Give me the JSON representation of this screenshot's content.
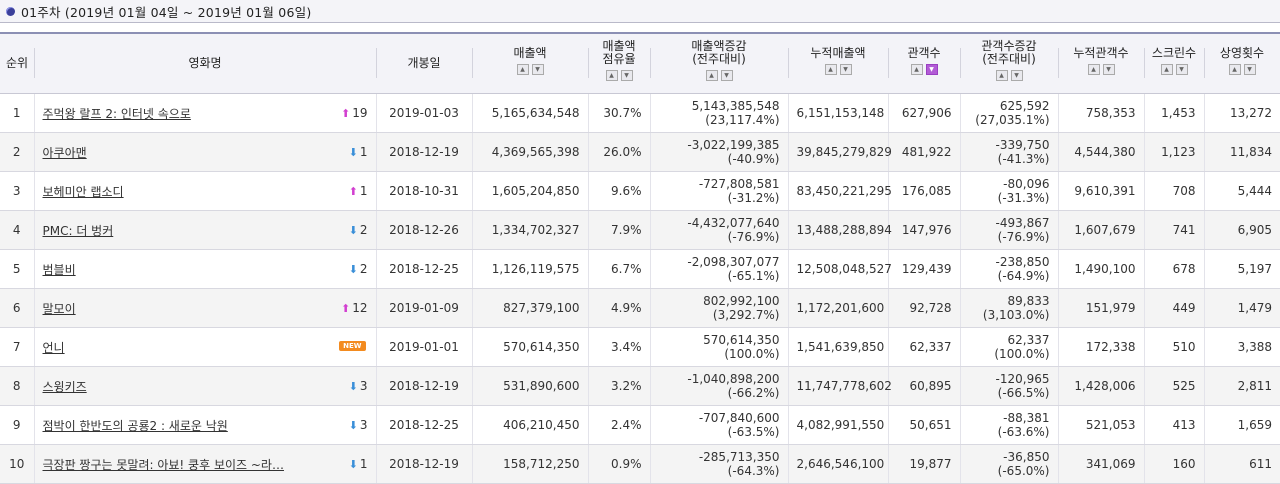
{
  "title": "01주차 (2019년 01월 04일 ~ 2019년 01월 06일)",
  "headers": {
    "rank": "순위",
    "movie": "영화명",
    "release": "개봉일",
    "sales": "매출액",
    "share_1": "매출액",
    "share_2": "점유율",
    "salesdiff_1": "매출액증감",
    "salesdiff_2": "(전주대비)",
    "cumsales": "누적매출액",
    "audience": "관객수",
    "auddiff_1": "관객수증감",
    "auddiff_2": "(전주대비)",
    "cumaud": "누적관객수",
    "screens": "스크린수",
    "shows": "상영횟수"
  },
  "new_badge": "NEW",
  "rows": [
    {
      "rank": "1",
      "movie": "주먹왕 랄프 2: 인터넷 속으로",
      "dir": "up",
      "change": "19",
      "release": "2019-01-03",
      "sales": "5,165,634,548",
      "share": "30.7%",
      "salesdiff": "5,143,385,548",
      "salesdiff_pct": "(23,117.4%)",
      "cumsales": "6,151,153,148",
      "audience": "627,906",
      "auddiff": "625,592",
      "auddiff_pct": "(27,035.1%)",
      "cumaud": "758,353",
      "screens": "1,453",
      "shows": "13,272"
    },
    {
      "rank": "2",
      "movie": "아쿠아맨",
      "dir": "down",
      "change": "1",
      "release": "2018-12-19",
      "sales": "4,369,565,398",
      "share": "26.0%",
      "salesdiff": "-3,022,199,385",
      "salesdiff_pct": "(-40.9%)",
      "cumsales": "39,845,279,829",
      "audience": "481,922",
      "auddiff": "-339,750",
      "auddiff_pct": "(-41.3%)",
      "cumaud": "4,544,380",
      "screens": "1,123",
      "shows": "11,834"
    },
    {
      "rank": "3",
      "movie": "보헤미안 랩소디",
      "dir": "up",
      "change": "1",
      "release": "2018-10-31",
      "sales": "1,605,204,850",
      "share": "9.6%",
      "salesdiff": "-727,808,581",
      "salesdiff_pct": "(-31.2%)",
      "cumsales": "83,450,221,295",
      "audience": "176,085",
      "auddiff": "-80,096",
      "auddiff_pct": "(-31.3%)",
      "cumaud": "9,610,391",
      "screens": "708",
      "shows": "5,444"
    },
    {
      "rank": "4",
      "movie": "PMC: 더 벙커",
      "dir": "down",
      "change": "2",
      "release": "2018-12-26",
      "sales": "1,334,702,327",
      "share": "7.9%",
      "salesdiff": "-4,432,077,640",
      "salesdiff_pct": "(-76.9%)",
      "cumsales": "13,488,288,894",
      "audience": "147,976",
      "auddiff": "-493,867",
      "auddiff_pct": "(-76.9%)",
      "cumaud": "1,607,679",
      "screens": "741",
      "shows": "6,905"
    },
    {
      "rank": "5",
      "movie": "범블비",
      "dir": "down",
      "change": "2",
      "release": "2018-12-25",
      "sales": "1,126,119,575",
      "share": "6.7%",
      "salesdiff": "-2,098,307,077",
      "salesdiff_pct": "(-65.1%)",
      "cumsales": "12,508,048,527",
      "audience": "129,439",
      "auddiff": "-238,850",
      "auddiff_pct": "(-64.9%)",
      "cumaud": "1,490,100",
      "screens": "678",
      "shows": "5,197"
    },
    {
      "rank": "6",
      "movie": "말모이",
      "dir": "up",
      "change": "12",
      "release": "2019-01-09",
      "sales": "827,379,100",
      "share": "4.9%",
      "salesdiff": "802,992,100",
      "salesdiff_pct": "(3,292.7%)",
      "cumsales": "1,172,201,600",
      "audience": "92,728",
      "auddiff": "89,833",
      "auddiff_pct": "(3,103.0%)",
      "cumaud": "151,979",
      "screens": "449",
      "shows": "1,479"
    },
    {
      "rank": "7",
      "movie": "언니",
      "dir": "new",
      "change": "",
      "release": "2019-01-01",
      "sales": "570,614,350",
      "share": "3.4%",
      "salesdiff": "570,614,350",
      "salesdiff_pct": "(100.0%)",
      "cumsales": "1,541,639,850",
      "audience": "62,337",
      "auddiff": "62,337",
      "auddiff_pct": "(100.0%)",
      "cumaud": "172,338",
      "screens": "510",
      "shows": "3,388"
    },
    {
      "rank": "8",
      "movie": "스윙키즈",
      "dir": "down",
      "change": "3",
      "release": "2018-12-19",
      "sales": "531,890,600",
      "share": "3.2%",
      "salesdiff": "-1,040,898,200",
      "salesdiff_pct": "(-66.2%)",
      "cumsales": "11,747,778,602",
      "audience": "60,895",
      "auddiff": "-120,965",
      "auddiff_pct": "(-66.5%)",
      "cumaud": "1,428,006",
      "screens": "525",
      "shows": "2,811"
    },
    {
      "rank": "9",
      "movie": "점박이 한반도의 공룡2 : 새로운 낙원",
      "dir": "down",
      "change": "3",
      "release": "2018-12-25",
      "sales": "406,210,450",
      "share": "2.4%",
      "salesdiff": "-707,840,600",
      "salesdiff_pct": "(-63.5%)",
      "cumsales": "4,082,991,550",
      "audience": "50,651",
      "auddiff": "-88,381",
      "auddiff_pct": "(-63.6%)",
      "cumaud": "521,053",
      "screens": "413",
      "shows": "1,659"
    },
    {
      "rank": "10",
      "movie": "극장판 짱구는 못말려: 아뵤! 쿵후 보이즈 ~라…",
      "dir": "down",
      "change": "1",
      "release": "2018-12-19",
      "sales": "158,712,250",
      "share": "0.9%",
      "salesdiff": "-285,713,350",
      "salesdiff_pct": "(-64.3%)",
      "cumsales": "2,646,546,100",
      "audience": "19,877",
      "auddiff": "-36,850",
      "auddiff_pct": "(-65.0%)",
      "cumaud": "341,069",
      "screens": "160",
      "shows": "611"
    }
  ]
}
